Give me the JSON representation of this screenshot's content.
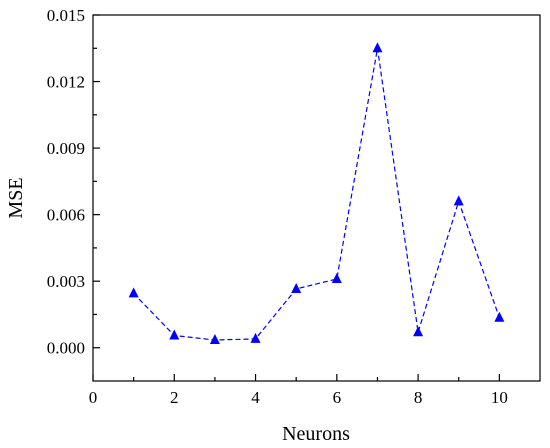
{
  "chart_data": {
    "type": "line",
    "title": "",
    "xlabel": "Neurons",
    "ylabel": "MSE",
    "x": [
      1,
      2,
      3,
      4,
      5,
      6,
      7,
      8,
      9,
      10
    ],
    "series": [
      {
        "values": [
          0.00245,
          0.00055,
          0.00035,
          0.0004,
          0.00265,
          0.0031,
          0.0135,
          0.0007,
          0.0066,
          0.00135
        ]
      }
    ],
    "xlim": [
      0,
      11
    ],
    "ylim": [
      -0.0015,
      0.015
    ],
    "xticks": [
      0,
      2,
      4,
      6,
      8,
      10
    ],
    "xtick_labels": [
      "0",
      "2",
      "4",
      "6",
      "8",
      "10"
    ],
    "yticks": [
      0,
      0.003,
      0.006,
      0.009,
      0.012,
      0.015
    ],
    "ytick_labels": [
      "0.000",
      "0.003",
      "0.006",
      "0.009",
      "0.012",
      "0.015"
    ],
    "line_style": "dashed",
    "marker": "triangle",
    "color": "#0000ff",
    "grid": false,
    "legend": "none"
  }
}
